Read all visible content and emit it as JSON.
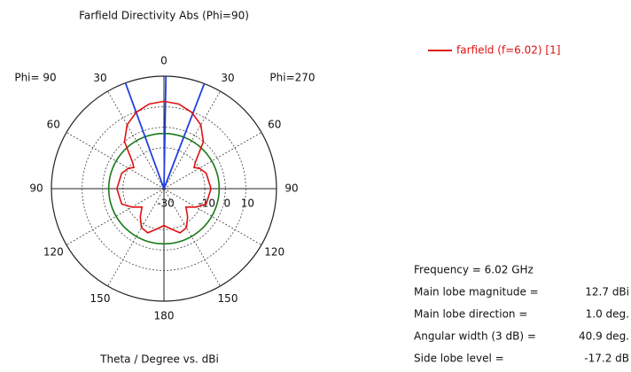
{
  "chart_data": {
    "type": "polar",
    "title": "Farfield Directivity Abs (Phi=90)",
    "axis_label": "Theta / Degree vs. dBi",
    "side_labels": [
      "Phi= 90",
      "Phi=270"
    ],
    "rlim": [
      -30,
      25
    ],
    "rticks": [
      -30,
      -10,
      0,
      10
    ],
    "angle_ticks": [
      0,
      30,
      60,
      90,
      120,
      150,
      180,
      {
        "value": -30,
        "label": "30"
      },
      {
        "value": -60,
        "label": "60"
      },
      {
        "value": -90,
        "label": "90"
      },
      {
        "value": -120,
        "label": "120"
      },
      {
        "value": -150,
        "label": "150"
      }
    ],
    "series": [
      {
        "name": "farfield (f=6.02) [1]",
        "color": "#e01010",
        "angles": [
          -180,
          -170,
          -160,
          -150,
          -140,
          -130,
          -120,
          -110,
          -90,
          -70,
          -60,
          -55,
          -50,
          -40,
          -30,
          -20,
          -10,
          0,
          10,
          20,
          30,
          40,
          50,
          55,
          60,
          70,
          90,
          110,
          120,
          130,
          140,
          150,
          160,
          170
        ],
        "values": [
          -12,
          -10,
          -7,
          -8,
          -12,
          -16,
          -12,
          -8,
          -7,
          -8,
          -10,
          -12,
          -10,
          0,
          6,
          9.7,
          12,
          12.7,
          12,
          9.7,
          6,
          0,
          -10,
          -12,
          -10,
          -8,
          -7,
          -8,
          -12,
          -16,
          -12,
          -8,
          -7,
          -10
        ]
      }
    ],
    "reference_circle": {
      "value": -3,
      "color": "#1a7a1a"
    },
    "beam_lines": {
      "angles": [
        -20,
        1,
        21
      ],
      "color": "#2040e0"
    },
    "info": [
      "Frequency = 6.02 GHz",
      [
        "Main lobe magnitude =",
        "12.7 dBi"
      ],
      [
        "Main lobe direction =",
        "1.0 deg."
      ],
      [
        "Angular width (3 dB) =",
        "40.9 deg."
      ],
      [
        "Side lobe level =",
        "-17.2 dB"
      ]
    ]
  }
}
